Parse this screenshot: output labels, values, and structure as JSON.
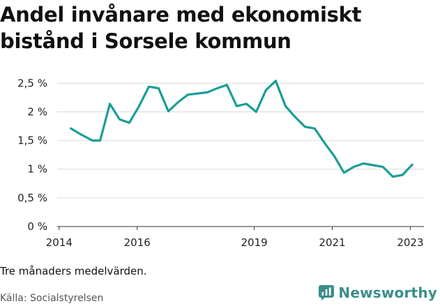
{
  "chart_data": {
    "type": "line",
    "title": "Andel invånare med ekonomiskt bistånd i Sorsele kommun",
    "y_ticks": [
      {
        "value": 0,
        "label": "0 %"
      },
      {
        "value": 0.5,
        "label": "0,5 %"
      },
      {
        "value": 1.0,
        "label": "1 %"
      },
      {
        "value": 1.5,
        "label": "1,5 %"
      },
      {
        "value": 2.0,
        "label": "2 %"
      },
      {
        "value": 2.5,
        "label": "2,5 %"
      }
    ],
    "x_ticks": [
      {
        "value": 2014,
        "label": "2014"
      },
      {
        "value": 2016,
        "label": "2016"
      },
      {
        "value": 2019,
        "label": "2019"
      },
      {
        "value": 2021,
        "label": "2021"
      },
      {
        "value": 2023,
        "label": "2023"
      }
    ],
    "xlim": [
      2013.95,
      2023.35
    ],
    "ylim": [
      0,
      2.65
    ],
    "grid": true,
    "color": "#1a9e94",
    "series": [
      {
        "x": [
          2014.3,
          2014.55,
          2014.85,
          2015.05,
          2015.3,
          2015.55,
          2015.8,
          2016.05,
          2016.3,
          2016.55,
          2016.8,
          2017.05,
          2017.3,
          2017.55,
          2017.8,
          2018.05,
          2018.3,
          2018.55,
          2018.8,
          2019.05,
          2019.3,
          2019.55,
          2019.8,
          2020.05,
          2020.3,
          2020.55,
          2020.8,
          2021.05,
          2021.3,
          2021.55,
          2021.8,
          2022.05,
          2022.3,
          2022.55,
          2022.8,
          2023.05
        ],
        "y": [
          1.71,
          1.61,
          1.5,
          1.5,
          2.14,
          1.87,
          1.81,
          2.1,
          2.44,
          2.41,
          2.01,
          2.17,
          2.3,
          2.32,
          2.34,
          2.41,
          2.47,
          2.1,
          2.14,
          2.0,
          2.38,
          2.54,
          2.1,
          1.91,
          1.74,
          1.71,
          1.46,
          1.23,
          0.94,
          1.04,
          1.1,
          1.07,
          1.04,
          0.87,
          0.9,
          1.08
        ]
      }
    ]
  },
  "footer": {
    "note": "Tre månaders medelvärden.",
    "source": "Källa: Socialstyrelsen",
    "brand": "Newsworthy",
    "brand_icon": "newsworthy-logo-icon",
    "brand_color": "#3b8e8b"
  }
}
